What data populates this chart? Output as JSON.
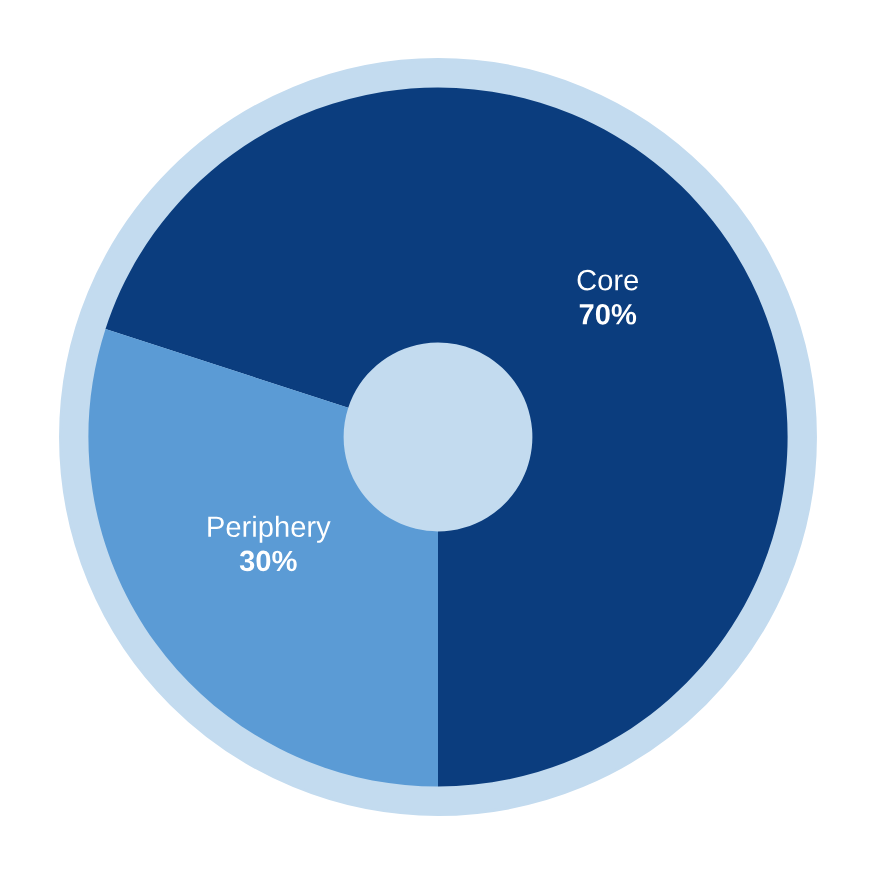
{
  "chart_data": {
    "type": "donut",
    "categories": [
      "Core",
      "Periphery"
    ],
    "values": [
      70,
      30
    ],
    "value_labels": [
      "70%",
      "30%"
    ],
    "colors": [
      "#0b3d7e",
      "#5b9bd5"
    ]
  }
}
